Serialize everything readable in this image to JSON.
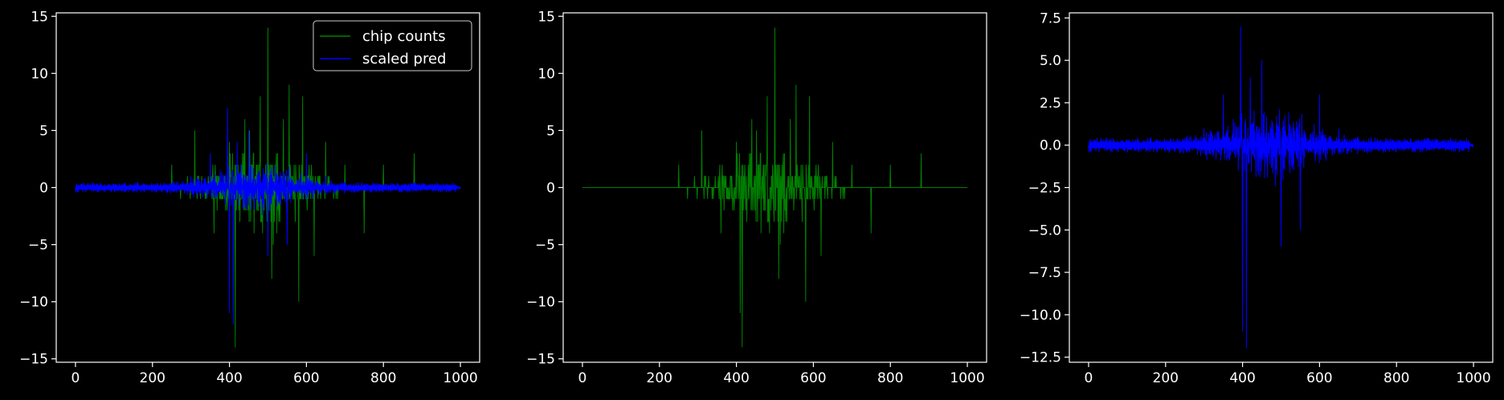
{
  "chart_data": [
    {
      "type": "line",
      "title": "",
      "xlabel": "",
      "ylabel": "",
      "xlim": [
        -50,
        1050
      ],
      "ylim": [
        -15.3,
        15.3
      ],
      "xticks": [
        0,
        200,
        400,
        600,
        800,
        1000
      ],
      "xtick_labels": [
        "0",
        "200",
        "400",
        "600",
        "800",
        "1000"
      ],
      "yticks": [
        -15,
        -10,
        -5,
        0,
        5,
        10,
        15
      ],
      "ytick_labels": [
        "−15",
        "−10",
        "−5",
        "0",
        "5",
        "10",
        "15"
      ],
      "legend": {
        "placement": "top-right"
      },
      "series": [
        {
          "name": "chip counts",
          "color": "#008000",
          "style": "signed integer spikes about 0, wider spread between 300 and 650",
          "x": [
            0,
            250,
            310,
            360,
            400,
            410,
            415,
            440,
            480,
            500,
            510,
            540,
            555,
            580,
            590,
            620,
            650,
            700,
            750,
            800,
            880,
            1000
          ],
          "values": [
            0,
            2,
            5,
            -4,
            4,
            -11,
            -14,
            6,
            8,
            14,
            -8,
            6,
            9,
            -10,
            8,
            -6,
            4,
            2,
            -4,
            2,
            3,
            0
          ]
        },
        {
          "name": "scaled pred",
          "color": "#0000ff",
          "style": "dense band around 0 split into upper/lower halves",
          "x": [
            0,
            200,
            300,
            350,
            395,
            400,
            410,
            420,
            450,
            500,
            550,
            600,
            650,
            700,
            800,
            1000
          ],
          "values": [
            0,
            0.2,
            1,
            3,
            7,
            -11,
            -12,
            4,
            5,
            -6,
            -5,
            3,
            1,
            0.5,
            0.3,
            0
          ]
        }
      ]
    },
    {
      "type": "line",
      "title": "",
      "xlabel": "",
      "ylabel": "",
      "xlim": [
        -50,
        1050
      ],
      "ylim": [
        -15.3,
        15.3
      ],
      "xticks": [
        0,
        200,
        400,
        600,
        800,
        1000
      ],
      "xtick_labels": [
        "0",
        "200",
        "400",
        "600",
        "800",
        "1000"
      ],
      "yticks": [
        -15,
        -10,
        -5,
        0,
        5,
        10,
        15
      ],
      "ytick_labels": [
        "−15",
        "−10",
        "−5",
        "0",
        "5",
        "10",
        "15"
      ],
      "series": [
        {
          "color": "#008000",
          "style": "signed integer spikes about 0, wider spread between 300 and 650",
          "x": [
            0,
            250,
            310,
            360,
            400,
            410,
            415,
            440,
            480,
            500,
            510,
            540,
            555,
            580,
            590,
            620,
            650,
            700,
            750,
            800,
            880,
            1000
          ],
          "values": [
            0,
            2,
            5,
            -4,
            4,
            -11,
            -14,
            6,
            8,
            14,
            -8,
            6,
            9,
            -10,
            8,
            -6,
            4,
            2,
            -4,
            2,
            3,
            0
          ]
        }
      ]
    },
    {
      "type": "line",
      "title": "",
      "xlabel": "",
      "ylabel": "",
      "xlim": [
        -50,
        1050
      ],
      "ylim": [
        -12.8,
        7.8
      ],
      "xticks": [
        0,
        200,
        400,
        600,
        800,
        1000
      ],
      "xtick_labels": [
        "0",
        "200",
        "400",
        "600",
        "800",
        "1000"
      ],
      "yticks": [
        -12.5,
        -10.0,
        -7.5,
        -5.0,
        -2.5,
        0.0,
        2.5,
        5.0,
        7.5
      ],
      "ytick_labels": [
        "−12.5",
        "−10.0",
        "−7.5",
        "−5.0",
        "−2.5",
        "0.0",
        "2.5",
        "5.0",
        "7.5"
      ],
      "series": [
        {
          "color": "#0000ff",
          "style": "dense band around 0 split into upper/lower halves",
          "x": [
            0,
            200,
            300,
            350,
            395,
            400,
            410,
            420,
            450,
            500,
            550,
            600,
            650,
            700,
            800,
            1000
          ],
          "values": [
            0,
            0.2,
            1,
            3,
            7,
            -11,
            -12,
            4,
            5,
            -6,
            -5,
            3,
            1,
            0.5,
            0.3,
            0
          ]
        }
      ]
    }
  ]
}
